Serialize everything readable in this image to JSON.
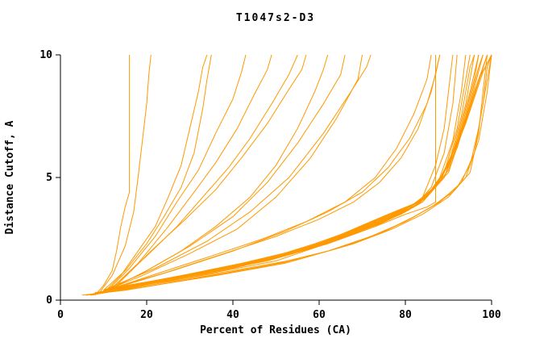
{
  "chart_data": {
    "type": "line",
    "title": "T1047s2-D3",
    "xlabel": "Percent of Residues (CA)",
    "ylabel": "Distance Cutoff, A",
    "xlim": [
      0,
      100
    ],
    "ylim": [
      0,
      10
    ],
    "x_ticks": [
      "0",
      "20",
      "40",
      "60",
      "80",
      "100"
    ],
    "y_ticks": [
      "0",
      "5",
      "10"
    ],
    "grid": false,
    "legend": "none",
    "line_color": "#FF9900",
    "axis_color": "#000000",
    "series": [
      [
        [
          8,
          0.2
        ],
        [
          10,
          0.6
        ],
        [
          12,
          1.2
        ],
        [
          13,
          2.0
        ],
        [
          14,
          3.0
        ],
        [
          15,
          3.8
        ],
        [
          16,
          4.4
        ],
        [
          16,
          10
        ]
      ],
      [
        [
          9,
          0.3
        ],
        [
          12,
          1.0
        ],
        [
          15,
          2.2
        ],
        [
          17,
          3.6
        ],
        [
          18,
          5.0
        ],
        [
          19,
          6.5
        ],
        [
          20,
          8.0
        ],
        [
          20.5,
          9.2
        ],
        [
          21,
          10
        ]
      ],
      [
        [
          10,
          0.3
        ],
        [
          14,
          1.0
        ],
        [
          18,
          2.0
        ],
        [
          22,
          3.0
        ],
        [
          25,
          4.2
        ],
        [
          28,
          5.5
        ],
        [
          30,
          7.0
        ],
        [
          32,
          8.5
        ],
        [
          33,
          9.5
        ],
        [
          34,
          10
        ]
      ],
      [
        [
          10,
          0.4
        ],
        [
          15,
          1.2
        ],
        [
          20,
          2.3
        ],
        [
          24,
          3.4
        ],
        [
          28,
          4.6
        ],
        [
          31,
          6.0
        ],
        [
          33,
          7.8
        ],
        [
          34,
          9.0
        ],
        [
          35,
          10
        ]
      ],
      [
        [
          11,
          0.4
        ],
        [
          16,
          1.3
        ],
        [
          22,
          2.6
        ],
        [
          27,
          4.0
        ],
        [
          32,
          5.3
        ],
        [
          36,
          6.8
        ],
        [
          40,
          8.2
        ],
        [
          42,
          9.3
        ],
        [
          43,
          10
        ]
      ],
      [
        [
          12,
          0.5
        ],
        [
          18,
          1.5
        ],
        [
          25,
          3.0
        ],
        [
          31,
          4.4
        ],
        [
          36,
          5.6
        ],
        [
          41,
          7.0
        ],
        [
          45,
          8.4
        ],
        [
          48,
          9.4
        ],
        [
          49,
          10
        ]
      ],
      [
        [
          12,
          0.5
        ],
        [
          20,
          1.8
        ],
        [
          27,
          3.0
        ],
        [
          33,
          4.2
        ],
        [
          39,
          5.4
        ],
        [
          44,
          6.6
        ],
        [
          49,
          8.0
        ],
        [
          53,
          9.2
        ],
        [
          55,
          10
        ]
      ],
      [
        [
          13,
          0.6
        ],
        [
          21,
          2.0
        ],
        [
          29,
          3.3
        ],
        [
          36,
          4.5
        ],
        [
          42,
          5.8
        ],
        [
          48,
          7.2
        ],
        [
          53,
          8.6
        ],
        [
          56,
          9.4
        ],
        [
          57,
          10
        ]
      ],
      [
        [
          10,
          0.4
        ],
        [
          18,
          1.0
        ],
        [
          28,
          2.0
        ],
        [
          36,
          3.0
        ],
        [
          44,
          4.2
        ],
        [
          50,
          5.5
        ],
        [
          55,
          7.0
        ],
        [
          59,
          8.5
        ],
        [
          61,
          9.4
        ],
        [
          62,
          10
        ]
      ],
      [
        [
          11,
          0.4
        ],
        [
          20,
          1.2
        ],
        [
          30,
          2.2
        ],
        [
          40,
          3.4
        ],
        [
          48,
          4.8
        ],
        [
          55,
          6.4
        ],
        [
          61,
          8.0
        ],
        [
          65,
          9.2
        ],
        [
          66,
          10
        ]
      ],
      [
        [
          9,
          0.3
        ],
        [
          19,
          1.0
        ],
        [
          30,
          1.9
        ],
        [
          41,
          2.9
        ],
        [
          50,
          4.2
        ],
        [
          58,
          5.8
        ],
        [
          64,
          7.4
        ],
        [
          69,
          9.0
        ],
        [
          70,
          10
        ]
      ],
      [
        [
          10,
          0.4
        ],
        [
          22,
          1.3
        ],
        [
          34,
          2.4
        ],
        [
          44,
          3.6
        ],
        [
          53,
          5.0
        ],
        [
          61,
          6.8
        ],
        [
          67,
          8.4
        ],
        [
          71,
          9.5
        ],
        [
          72,
          10
        ]
      ],
      [
        [
          6,
          0.2
        ],
        [
          14,
          0.5
        ],
        [
          26,
          0.8
        ],
        [
          38,
          1.2
        ],
        [
          50,
          1.6
        ],
        [
          60,
          2.2
        ],
        [
          68,
          2.7
        ],
        [
          75,
          3.2
        ],
        [
          80,
          3.6
        ],
        [
          84,
          4.2
        ],
        [
          87,
          5.5
        ],
        [
          89,
          7.0
        ],
        [
          90,
          8.5
        ],
        [
          91,
          10
        ]
      ],
      [
        [
          7,
          0.2
        ],
        [
          16,
          0.5
        ],
        [
          28,
          0.9
        ],
        [
          40,
          1.3
        ],
        [
          52,
          1.8
        ],
        [
          62,
          2.4
        ],
        [
          70,
          2.9
        ],
        [
          77,
          3.4
        ],
        [
          82,
          3.8
        ],
        [
          86,
          4.6
        ],
        [
          89,
          6.0
        ],
        [
          91,
          8.0
        ],
        [
          92,
          10
        ]
      ],
      [
        [
          8,
          0.3
        ],
        [
          18,
          0.6
        ],
        [
          30,
          1.0
        ],
        [
          42,
          1.4
        ],
        [
          54,
          1.9
        ],
        [
          64,
          2.5
        ],
        [
          72,
          3.0
        ],
        [
          79,
          3.5
        ],
        [
          84,
          4.0
        ],
        [
          88,
          5.0
        ],
        [
          91,
          6.5
        ],
        [
          93,
          8.5
        ],
        [
          94,
          10
        ]
      ],
      [
        [
          8,
          0.3
        ],
        [
          20,
          0.7
        ],
        [
          32,
          1.1
        ],
        [
          44,
          1.5
        ],
        [
          56,
          2.0
        ],
        [
          66,
          2.6
        ],
        [
          74,
          3.1
        ],
        [
          80,
          3.6
        ],
        [
          85,
          4.2
        ],
        [
          89,
          5.2
        ],
        [
          92,
          7.0
        ],
        [
          94,
          9.0
        ],
        [
          95,
          10
        ]
      ],
      [
        [
          9,
          0.3
        ],
        [
          22,
          0.8
        ],
        [
          34,
          1.2
        ],
        [
          46,
          1.6
        ],
        [
          58,
          2.1
        ],
        [
          68,
          2.7
        ],
        [
          75,
          3.2
        ],
        [
          81,
          3.7
        ],
        [
          86,
          4.4
        ],
        [
          90,
          5.5
        ],
        [
          93,
          7.5
        ],
        [
          95,
          9.5
        ],
        [
          96,
          10
        ]
      ],
      [
        [
          9,
          0.3
        ],
        [
          24,
          0.8
        ],
        [
          36,
          1.2
        ],
        [
          48,
          1.7
        ],
        [
          60,
          2.2
        ],
        [
          69,
          2.8
        ],
        [
          76,
          3.3
        ],
        [
          82,
          3.8
        ],
        [
          87,
          4.6
        ],
        [
          91,
          6.0
        ],
        [
          94,
          8.0
        ],
        [
          96,
          10
        ]
      ],
      [
        [
          10,
          0.4
        ],
        [
          25,
          0.9
        ],
        [
          38,
          1.3
        ],
        [
          50,
          1.8
        ],
        [
          61,
          2.3
        ],
        [
          70,
          2.9
        ],
        [
          77,
          3.4
        ],
        [
          83,
          3.9
        ],
        [
          88,
          4.8
        ],
        [
          92,
          6.5
        ],
        [
          95,
          8.5
        ],
        [
          97,
          10
        ]
      ],
      [
        [
          10,
          0.4
        ],
        [
          26,
          0.9
        ],
        [
          40,
          1.4
        ],
        [
          52,
          1.9
        ],
        [
          62,
          2.4
        ],
        [
          71,
          3.0
        ],
        [
          78,
          3.5
        ],
        [
          84,
          4.0
        ],
        [
          89,
          5.0
        ],
        [
          93,
          7.0
        ],
        [
          96,
          9.0
        ],
        [
          97,
          10
        ]
      ],
      [
        [
          11,
          0.4
        ],
        [
          28,
          1.0
        ],
        [
          42,
          1.5
        ],
        [
          54,
          2.0
        ],
        [
          64,
          2.5
        ],
        [
          72,
          3.1
        ],
        [
          79,
          3.6
        ],
        [
          85,
          4.2
        ],
        [
          90,
          5.3
        ],
        [
          94,
          7.5
        ],
        [
          97,
          9.5
        ],
        [
          98,
          10
        ]
      ],
      [
        [
          11,
          0.4
        ],
        [
          30,
          1.0
        ],
        [
          44,
          1.5
        ],
        [
          56,
          2.1
        ],
        [
          65,
          2.6
        ],
        [
          73,
          3.2
        ],
        [
          80,
          3.7
        ],
        [
          86,
          4.4
        ],
        [
          91,
          5.8
        ],
        [
          95,
          8.0
        ],
        [
          98,
          10
        ]
      ],
      [
        [
          12,
          0.5
        ],
        [
          32,
          1.1
        ],
        [
          46,
          1.6
        ],
        [
          58,
          2.2
        ],
        [
          66,
          2.7
        ],
        [
          74,
          3.3
        ],
        [
          81,
          3.8
        ],
        [
          87,
          4.6
        ],
        [
          92,
          6.2
        ],
        [
          96,
          8.5
        ],
        [
          99,
          10
        ]
      ],
      [
        [
          12,
          0.5
        ],
        [
          34,
          1.1
        ],
        [
          48,
          1.7
        ],
        [
          59,
          2.3
        ],
        [
          67,
          2.8
        ],
        [
          75,
          3.4
        ],
        [
          82,
          3.9
        ],
        [
          88,
          4.8
        ],
        [
          93,
          6.8
        ],
        [
          97,
          9.0
        ],
        [
          100,
          10
        ]
      ],
      [
        [
          13,
          0.5
        ],
        [
          36,
          1.2
        ],
        [
          50,
          1.8
        ],
        [
          60,
          2.3
        ],
        [
          68,
          2.9
        ],
        [
          76,
          3.5
        ],
        [
          83,
          4.0
        ],
        [
          89,
          5.0
        ],
        [
          94,
          7.2
        ],
        [
          98,
          9.3
        ],
        [
          100,
          10
        ]
      ],
      [
        [
          13,
          0.5
        ],
        [
          38,
          1.3
        ],
        [
          52,
          1.9
        ],
        [
          62,
          2.4
        ],
        [
          70,
          3.0
        ],
        [
          77,
          3.5
        ],
        [
          84,
          4.1
        ],
        [
          90,
          5.2
        ],
        [
          95,
          7.8
        ],
        [
          99,
          10
        ]
      ],
      [
        [
          12,
          0.4
        ],
        [
          30,
          1.0
        ],
        [
          48,
          1.6
        ],
        [
          62,
          2.3
        ],
        [
          73,
          3.0
        ],
        [
          80,
          3.5
        ],
        [
          85,
          3.8
        ],
        [
          87,
          4.0
        ],
        [
          87,
          10
        ]
      ],
      [
        [
          7,
          0.2
        ],
        [
          20,
          0.6
        ],
        [
          38,
          1.1
        ],
        [
          54,
          1.6
        ],
        [
          66,
          2.2
        ],
        [
          75,
          2.8
        ],
        [
          82,
          3.4
        ],
        [
          88,
          4.0
        ],
        [
          93,
          4.8
        ],
        [
          96,
          6.0
        ],
        [
          98,
          8.0
        ],
        [
          99,
          9.5
        ],
        [
          100,
          10
        ]
      ],
      [
        [
          8,
          0.3
        ],
        [
          22,
          0.7
        ],
        [
          40,
          1.2
        ],
        [
          56,
          1.7
        ],
        [
          68,
          2.3
        ],
        [
          77,
          2.9
        ],
        [
          84,
          3.5
        ],
        [
          90,
          4.2
        ],
        [
          94,
          5.0
        ],
        [
          97,
          6.5
        ],
        [
          99,
          8.5
        ],
        [
          100,
          10
        ]
      ],
      [
        [
          6,
          0.2
        ],
        [
          18,
          0.5
        ],
        [
          36,
          1.0
        ],
        [
          52,
          1.5
        ],
        [
          64,
          2.1
        ],
        [
          74,
          2.7
        ],
        [
          81,
          3.3
        ],
        [
          87,
          3.9
        ],
        [
          92,
          4.6
        ],
        [
          95,
          5.5
        ],
        [
          97,
          7.0
        ],
        [
          99,
          9.0
        ],
        [
          100,
          10
        ]
      ],
      [
        [
          5,
          0.2
        ],
        [
          15,
          0.4
        ],
        [
          32,
          0.9
        ],
        [
          48,
          1.4
        ],
        [
          62,
          2.0
        ],
        [
          72,
          2.6
        ],
        [
          80,
          3.2
        ],
        [
          86,
          3.8
        ],
        [
          91,
          4.4
        ],
        [
          95,
          5.2
        ],
        [
          97,
          6.8
        ],
        [
          98,
          8.5
        ],
        [
          99,
          10
        ]
      ],
      [
        [
          10,
          0.4
        ],
        [
          24,
          1.1
        ],
        [
          38,
          1.9
        ],
        [
          50,
          2.6
        ],
        [
          60,
          3.3
        ],
        [
          68,
          4.0
        ],
        [
          74,
          4.8
        ],
        [
          79,
          5.8
        ],
        [
          83,
          7.0
        ],
        [
          86,
          8.5
        ],
        [
          88,
          10
        ]
      ],
      [
        [
          11,
          0.4
        ],
        [
          26,
          1.2
        ],
        [
          40,
          2.0
        ],
        [
          52,
          2.8
        ],
        [
          62,
          3.6
        ],
        [
          70,
          4.4
        ],
        [
          76,
          5.4
        ],
        [
          81,
          6.6
        ],
        [
          85,
          8.0
        ],
        [
          87,
          9.2
        ],
        [
          88,
          10
        ]
      ],
      [
        [
          9,
          0.3
        ],
        [
          21,
          1.0
        ],
        [
          35,
          1.8
        ],
        [
          47,
          2.5
        ],
        [
          57,
          3.2
        ],
        [
          66,
          4.0
        ],
        [
          73,
          5.0
        ],
        [
          78,
          6.2
        ],
        [
          82,
          7.6
        ],
        [
          85,
          9.0
        ],
        [
          86,
          10
        ]
      ]
    ]
  }
}
